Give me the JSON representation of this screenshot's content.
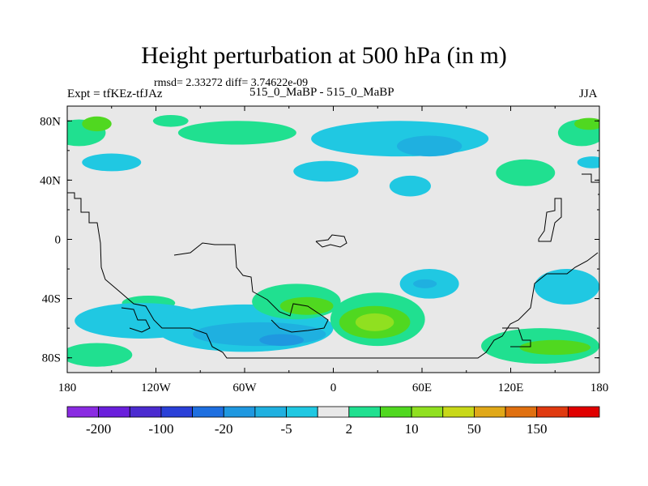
{
  "chart_data": {
    "type": "heatmap",
    "title": "Height perturbation at 500 hPa (in m)",
    "stats_line": "rmsd= 2.33272 diff= 3.74622e-09",
    "left_label": "Expt = tfKEz-tfJAz",
    "center_label": "515_0_MaBP - 515_0_MaBP",
    "right_label": "JJA",
    "x_ticks": [
      "180",
      "120W",
      "60W",
      "0",
      "60E",
      "120E",
      "180"
    ],
    "y_ticks": [
      "80N",
      "40N",
      "0",
      "40S",
      "80S"
    ],
    "xlim": [
      -180,
      180
    ],
    "ylim": [
      -90,
      90
    ],
    "contour_levels": [
      -200,
      -150,
      -100,
      -50,
      -20,
      -10,
      -5,
      -2,
      2,
      5,
      10,
      20,
      50,
      100,
      150,
      200
    ],
    "colorbar_colors": [
      "#8a2be2",
      "#6a1fdc",
      "#4b2bd0",
      "#2a40d8",
      "#1e6fe0",
      "#1f98e0",
      "#1fb0e0",
      "#20c8e2",
      "#e8e8e8",
      "#20e090",
      "#50d820",
      "#90e020",
      "#c8d818",
      "#e0a818",
      "#e07010",
      "#e03a10",
      "#e00000"
    ],
    "colorbar_labels": [
      "-200",
      "-100",
      "-20",
      "-5",
      "2",
      "10",
      "50",
      "150"
    ],
    "background_color": "#e8e8e8",
    "anomaly_regions": [
      {
        "lon": -172,
        "lat": 72,
        "rlon": 18,
        "rlat": 9,
        "color": "#20e090"
      },
      {
        "lon": -160,
        "lat": 78,
        "rlon": 10,
        "rlat": 5,
        "color": "#50d820"
      },
      {
        "lon": -150,
        "lat": 52,
        "rlon": 20,
        "rlat": 6,
        "color": "#20c8e2"
      },
      {
        "lon": -110,
        "lat": 80,
        "rlon": 12,
        "rlat": 4,
        "color": "#20e090"
      },
      {
        "lon": -65,
        "lat": 72,
        "rlon": 40,
        "rlat": 8,
        "color": "#20e090"
      },
      {
        "lon": 45,
        "lat": 68,
        "rlon": 60,
        "rlat": 12,
        "color": "#20c8e2"
      },
      {
        "lon": 65,
        "lat": 63,
        "rlon": 22,
        "rlat": 7,
        "color": "#1fb0e0"
      },
      {
        "lon": -5,
        "lat": 46,
        "rlon": 22,
        "rlat": 7,
        "color": "#20c8e2"
      },
      {
        "lon": 52,
        "lat": 36,
        "rlon": 14,
        "rlat": 7,
        "color": "#20c8e2"
      },
      {
        "lon": 130,
        "lat": 45,
        "rlon": 20,
        "rlat": 9,
        "color": "#20e090"
      },
      {
        "lon": 168,
        "lat": 72,
        "rlon": 16,
        "rlat": 9,
        "color": "#20e090"
      },
      {
        "lon": 173,
        "lat": 78,
        "rlon": 10,
        "rlat": 4,
        "color": "#50d820"
      },
      {
        "lon": 175,
        "lat": 52,
        "rlon": 10,
        "rlat": 4,
        "color": "#20c8e2"
      },
      {
        "lon": -125,
        "lat": -43,
        "rlon": 18,
        "rlat": 5,
        "color": "#20e090"
      },
      {
        "lon": -130,
        "lat": -55,
        "rlon": 45,
        "rlat": 12,
        "color": "#20c8e2"
      },
      {
        "lon": -60,
        "lat": -60,
        "rlon": 60,
        "rlat": 16,
        "color": "#20c8e2"
      },
      {
        "lon": -50,
        "lat": -64,
        "rlon": 45,
        "rlat": 8,
        "color": "#1fb0e0"
      },
      {
        "lon": -35,
        "lat": -68,
        "rlon": 15,
        "rlat": 4,
        "color": "#1f98e0"
      },
      {
        "lon": -25,
        "lat": -42,
        "rlon": 30,
        "rlat": 12,
        "color": "#20e090"
      },
      {
        "lon": -18,
        "lat": -45,
        "rlon": 18,
        "rlat": 6,
        "color": "#50d820"
      },
      {
        "lon": 30,
        "lat": -54,
        "rlon": 32,
        "rlat": 18,
        "color": "#20e090"
      },
      {
        "lon": 28,
        "lat": -56,
        "rlon": 24,
        "rlat": 11,
        "color": "#50d820"
      },
      {
        "lon": 28,
        "lat": -56,
        "rlon": 13,
        "rlat": 6,
        "color": "#90e020"
      },
      {
        "lon": 65,
        "lat": -30,
        "rlon": 20,
        "rlat": 10,
        "color": "#20c8e2"
      },
      {
        "lon": 62,
        "lat": -30,
        "rlon": 8,
        "rlat": 3,
        "color": "#1fb0e0"
      },
      {
        "lon": 158,
        "lat": -32,
        "rlon": 22,
        "rlat": 12,
        "color": "#20c8e2"
      },
      {
        "lon": -160,
        "lat": -78,
        "rlon": 24,
        "rlat": 8,
        "color": "#20e090"
      },
      {
        "lon": 140,
        "lat": -72,
        "rlon": 40,
        "rlat": 12,
        "color": "#20e090"
      },
      {
        "lon": 150,
        "lat": -73,
        "rlon": 24,
        "rlat": 5,
        "color": "#50d820"
      }
    ]
  }
}
